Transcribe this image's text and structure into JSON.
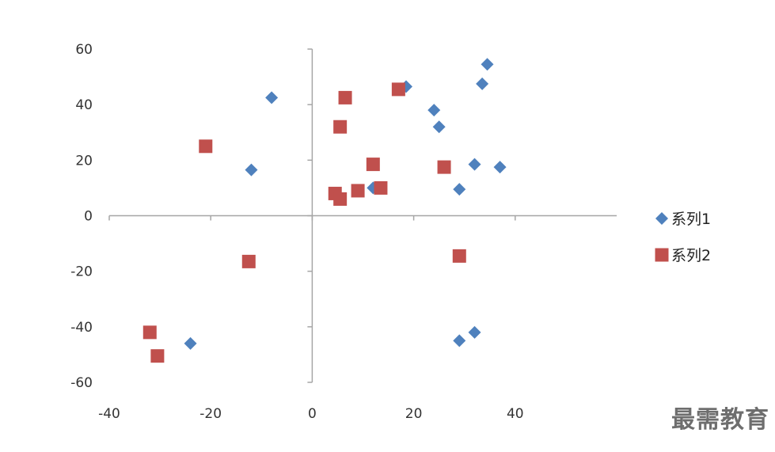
{
  "chart_data": {
    "type": "scatter",
    "title": "",
    "xlabel": "",
    "ylabel": "",
    "xlim": [
      -40,
      60
    ],
    "ylim": [
      -60,
      60
    ],
    "x_ticks": [
      -40,
      -20,
      0,
      20,
      40
    ],
    "y_ticks": [
      60,
      40,
      20,
      0,
      -20,
      -40,
      -60
    ],
    "grid": false,
    "legend_position": "right",
    "series": [
      {
        "name": "系列1",
        "marker": "diamond",
        "color": "#4f81bd",
        "points": [
          {
            "x": 34.5,
            "y": 54.5
          },
          {
            "x": 33.5,
            "y": 47.5
          },
          {
            "x": 18.5,
            "y": 46.5
          },
          {
            "x": -8,
            "y": 42.5
          },
          {
            "x": 24,
            "y": 38
          },
          {
            "x": 25,
            "y": 32
          },
          {
            "x": 32,
            "y": 18.5
          },
          {
            "x": 37,
            "y": 17.5
          },
          {
            "x": -12,
            "y": 16.5
          },
          {
            "x": 29,
            "y": 9.5
          },
          {
            "x": 12,
            "y": 10
          },
          {
            "x": 32,
            "y": -42
          },
          {
            "x": 29,
            "y": -45
          },
          {
            "x": -24,
            "y": -46
          }
        ]
      },
      {
        "name": "系列2",
        "marker": "square",
        "color": "#c0504d",
        "points": [
          {
            "x": 17,
            "y": 45.5
          },
          {
            "x": 6.5,
            "y": 42.5
          },
          {
            "x": 5.5,
            "y": 32
          },
          {
            "x": -21,
            "y": 25
          },
          {
            "x": 12,
            "y": 18.5
          },
          {
            "x": 26,
            "y": 17.5
          },
          {
            "x": 13.5,
            "y": 10
          },
          {
            "x": 9,
            "y": 9
          },
          {
            "x": 4.5,
            "y": 8
          },
          {
            "x": 5.5,
            "y": 6
          },
          {
            "x": 29,
            "y": -14.5
          },
          {
            "x": -12.5,
            "y": -16.5
          },
          {
            "x": -32,
            "y": -42
          },
          {
            "x": -30.5,
            "y": -50.5
          }
        ]
      }
    ]
  },
  "legend": {
    "items": [
      {
        "label": "系列1",
        "marker": "diamond",
        "color": "#4f81bd"
      },
      {
        "label": "系列2",
        "marker": "square",
        "color": "#c0504d"
      }
    ]
  },
  "watermark": {
    "text": "最需教育"
  },
  "colors": {
    "axis": "#a6a6a6",
    "tick_text": "#333333",
    "background": "#ffffff"
  }
}
